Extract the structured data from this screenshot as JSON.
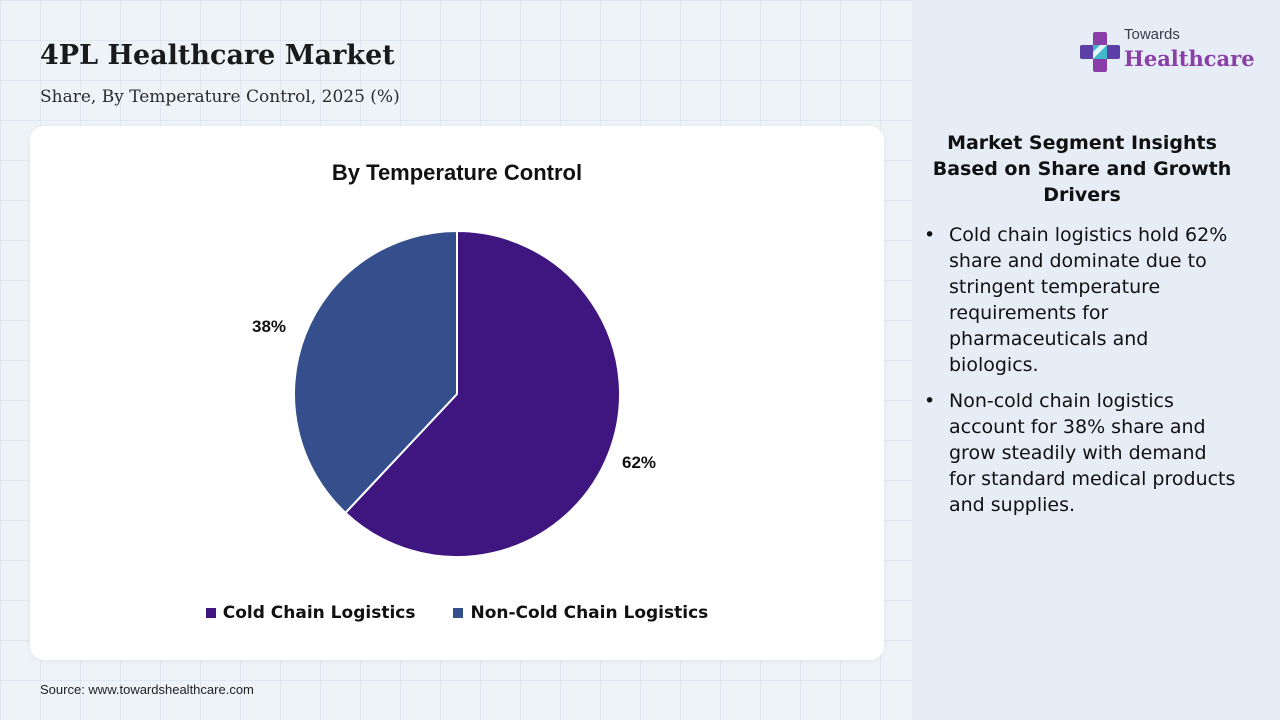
{
  "header": {
    "title": "4PL Healthcare Market",
    "subtitle": "Share, By Temperature Control, 2025 (%)"
  },
  "logo": {
    "top_text": "Towards",
    "bottom_text": "Healthcare",
    "icon": "plus-cross-icon"
  },
  "chart_data": {
    "type": "pie",
    "title": "By Temperature Control",
    "categories": [
      "Cold Chain Logistics",
      "Non-Cold Chain Logistics"
    ],
    "values": [
      62,
      38
    ],
    "labels": [
      "62%",
      "38%"
    ],
    "colors": [
      "#3f1580",
      "#354e8c"
    ],
    "legend_position": "bottom"
  },
  "insights": {
    "title": "Market Segment Insights Based on Share and Growth Drivers",
    "items": [
      "Cold chain logistics hold 62% share and dominate due to stringent temperature requirements for pharmaceuticals and biologics.",
      "Non-cold chain logistics account for 38% share and grow steadily with demand for standard medical products and supplies."
    ]
  },
  "source": "Source: www.towardshealthcare.com"
}
